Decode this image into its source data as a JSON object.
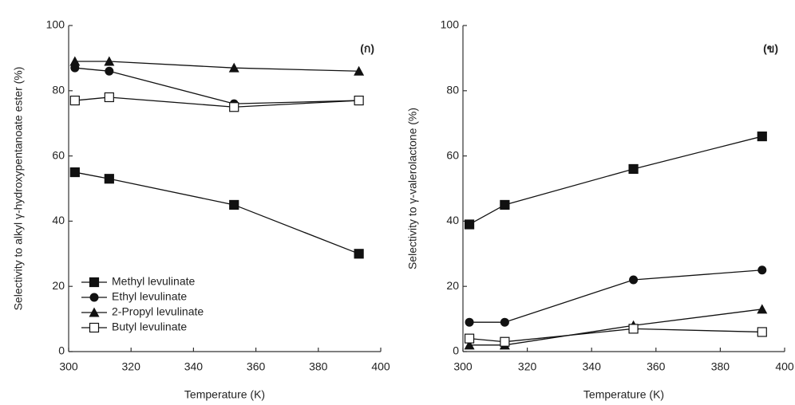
{
  "chart_data": [
    {
      "type": "line",
      "panel_label": "(ก)",
      "xlabel": "Temperature (K)",
      "ylabel": "Selectivity to alkyl γ-hydroxypentanoate ester (%)",
      "x": [
        302,
        313,
        353,
        393
      ],
      "xlim": [
        300,
        400
      ],
      "xticks": [
        300,
        320,
        340,
        360,
        380,
        400
      ],
      "ylim": [
        0,
        100
      ],
      "yticks": [
        0,
        20,
        40,
        60,
        80,
        100
      ],
      "legend": "lower left",
      "series": [
        {
          "name": "Methyl levulinate",
          "color": "#111111",
          "marker": "square",
          "values": [
            55,
            53,
            45,
            30
          ]
        },
        {
          "name": "Ethyl levulinate",
          "color": "#111111",
          "marker": "circle",
          "values": [
            87,
            86,
            76,
            77
          ]
        },
        {
          "name": "2-Propyl levulinate",
          "color": "#111111",
          "marker": "triangle",
          "values": [
            89,
            89,
            87,
            86
          ]
        },
        {
          "name": "Butyl levulinate",
          "color": "#111111",
          "marker": "open-square",
          "values": [
            77,
            78,
            75,
            77
          ]
        }
      ]
    },
    {
      "type": "line",
      "panel_label": "(ข)",
      "xlabel": "Temperature (K)",
      "ylabel": "Selectivity to γ-valerolactone (%)",
      "x": [
        302,
        313,
        353,
        393
      ],
      "xlim": [
        300,
        400
      ],
      "xticks": [
        300,
        320,
        340,
        360,
        380,
        400
      ],
      "ylim": [
        0,
        100
      ],
      "yticks": [
        0,
        20,
        40,
        60,
        80,
        100
      ],
      "series": [
        {
          "color": "#111111",
          "marker": "square",
          "values": [
            39,
            45,
            56,
            66
          ]
        },
        {
          "color": "#111111",
          "marker": "circle",
          "values": [
            9,
            9,
            22,
            25
          ]
        },
        {
          "color": "#111111",
          "marker": "triangle",
          "values": [
            2,
            2,
            8,
            13
          ]
        },
        {
          "color": "#111111",
          "marker": "open-square",
          "values": [
            4,
            3,
            7,
            6
          ]
        }
      ]
    }
  ]
}
